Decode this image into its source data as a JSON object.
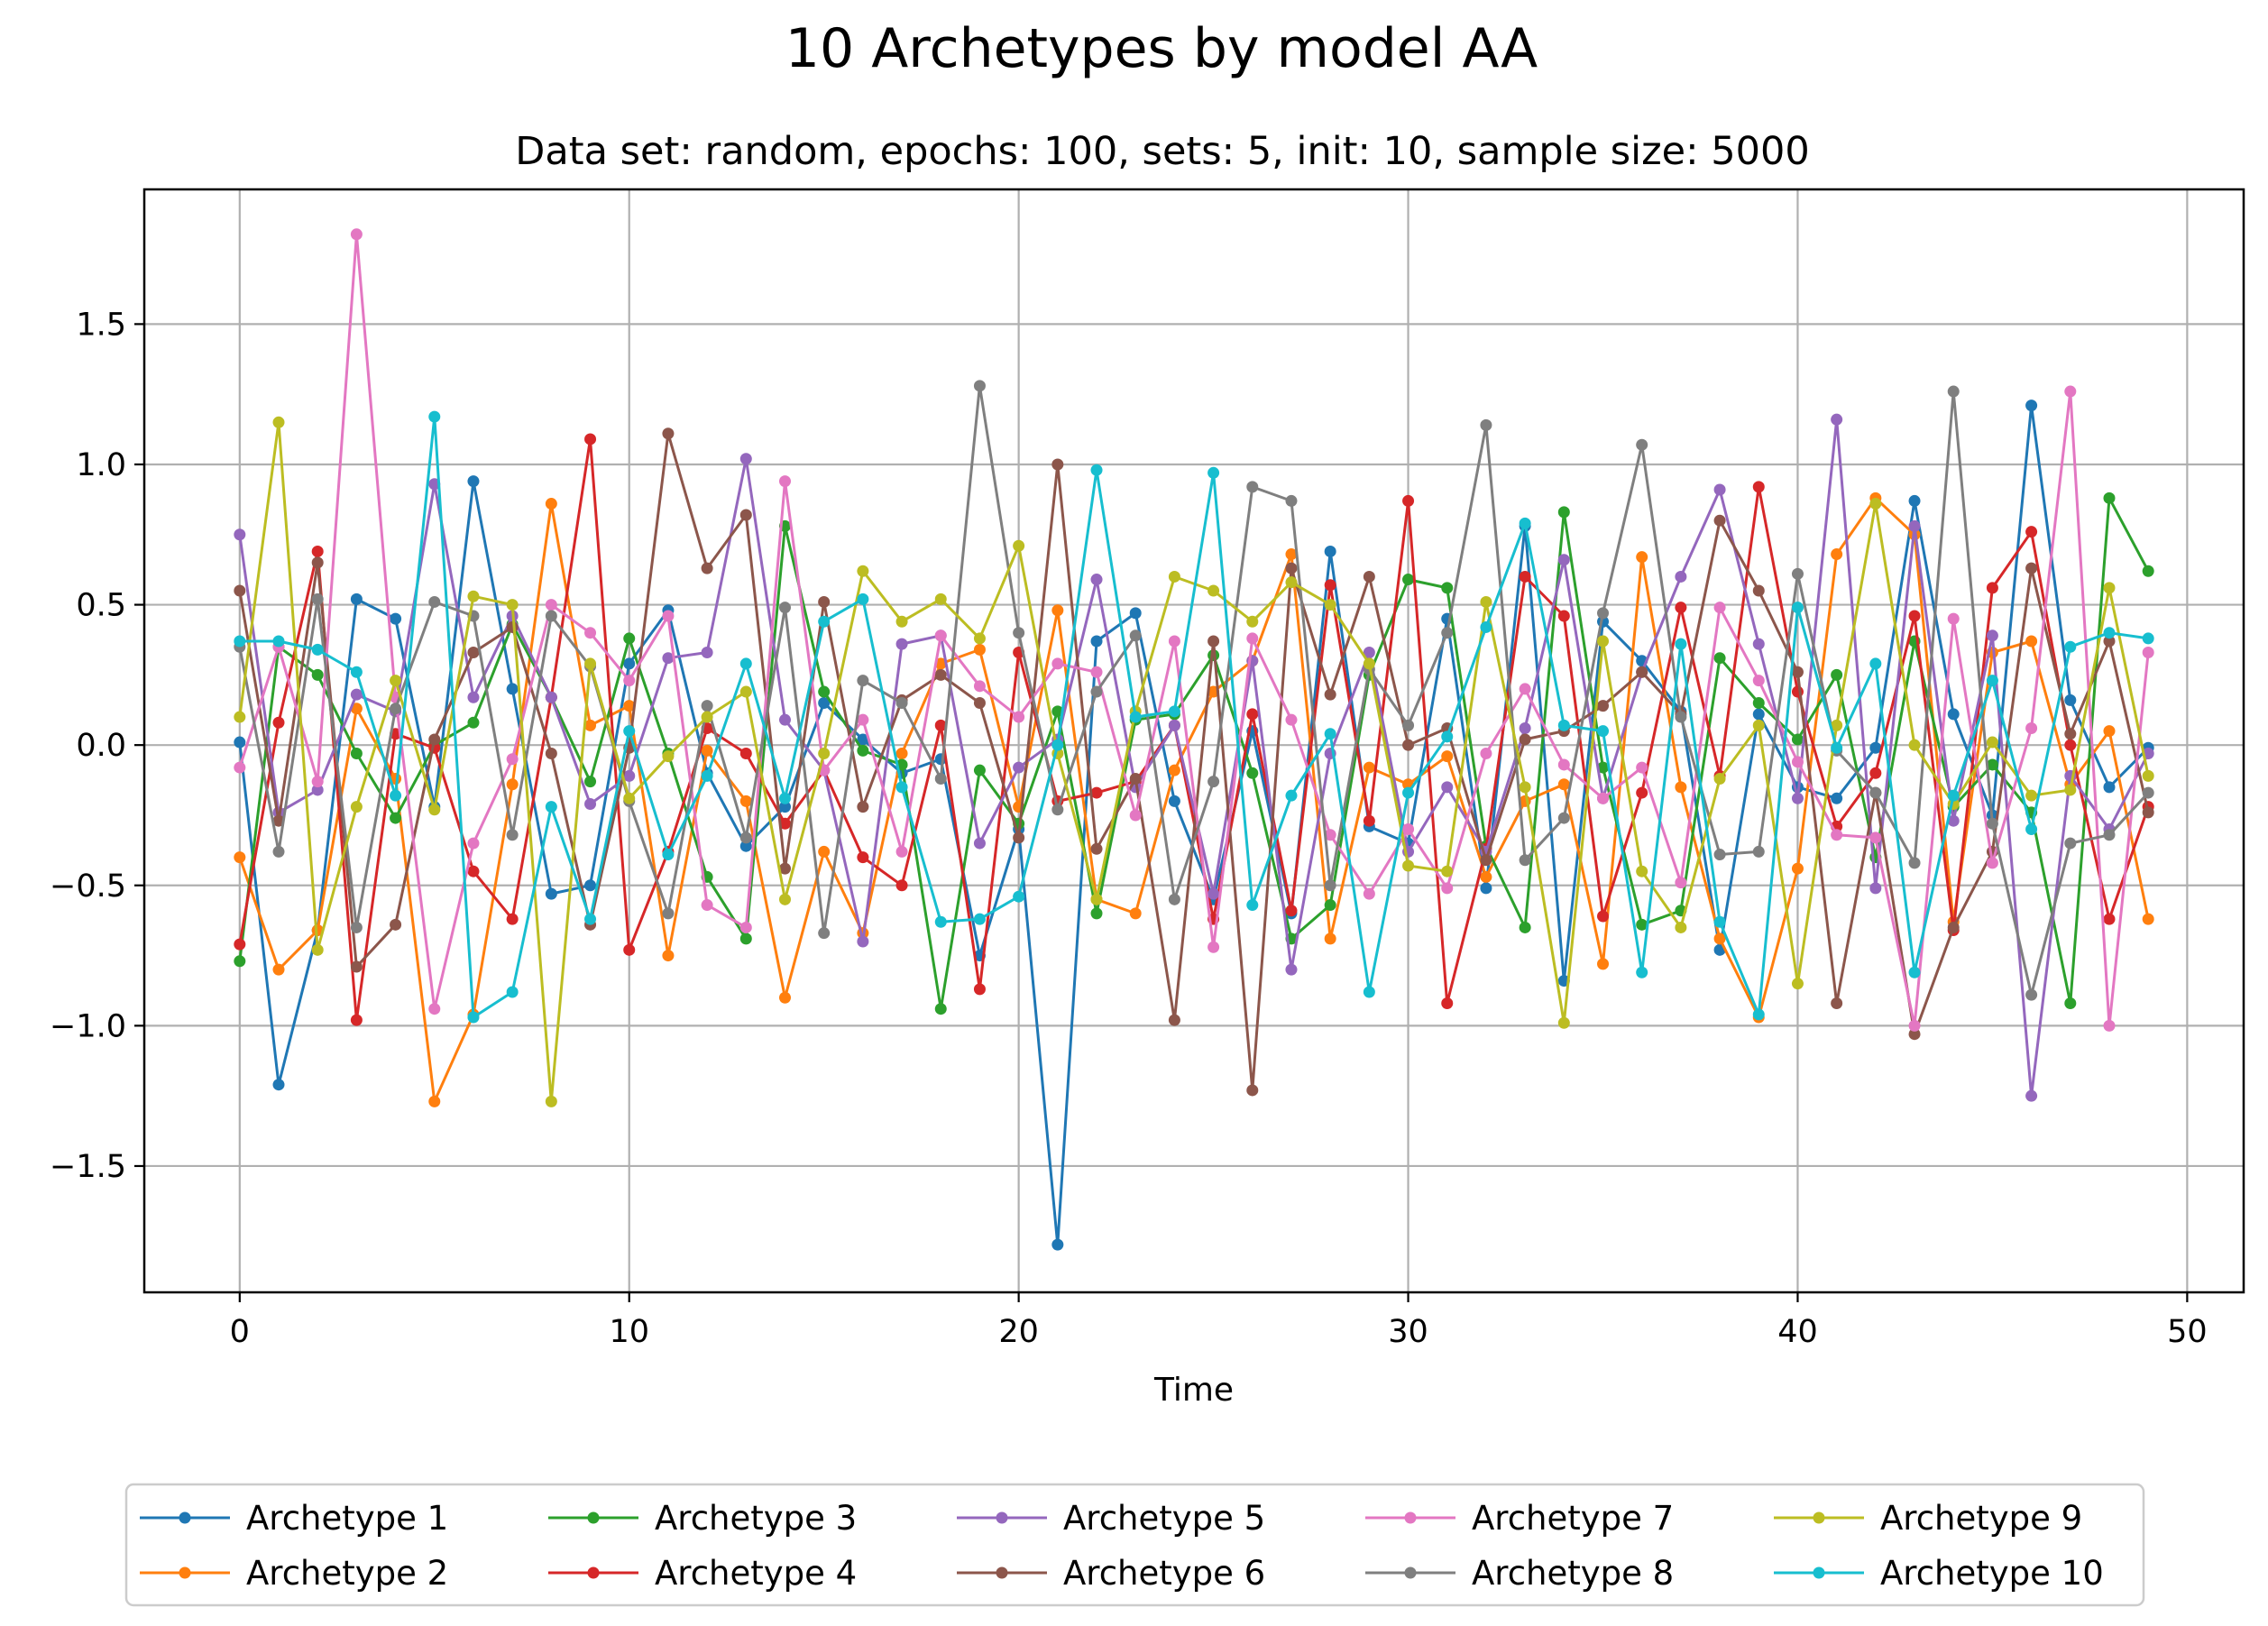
{
  "chart_data": {
    "type": "line",
    "title": "10 Archetypes by model AA",
    "subtitle": "Data set: random, epochs: 100, sets: 5, init: 10, sample size: 5000",
    "xlabel": "Time",
    "ylabel": "",
    "xlim": [
      -2.45,
      51.45
    ],
    "ylim": [
      -1.95,
      1.98
    ],
    "xticks": [
      0,
      10,
      20,
      30,
      40,
      50
    ],
    "xtick_labels": [
      "0",
      "10",
      "20",
      "30",
      "40",
      "50"
    ],
    "yticks": [
      -1.5,
      -1.0,
      -0.5,
      0.0,
      0.5,
      1.0,
      1.5
    ],
    "ytick_labels": [
      "−1.5",
      "−1.0",
      "−0.5",
      "0.0",
      "0.5",
      "1.0",
      "1.5"
    ],
    "grid": true,
    "legend_position": "bottom-center",
    "legend_columns": 5,
    "x": [
      0,
      1,
      2,
      3,
      4,
      5,
      6,
      7,
      8,
      9,
      10,
      11,
      12,
      13,
      14,
      15,
      16,
      17,
      18,
      19,
      20,
      21,
      22,
      23,
      24,
      25,
      26,
      27,
      28,
      29,
      30,
      31,
      32,
      33,
      34,
      35,
      36,
      37,
      38,
      39,
      40,
      41,
      42,
      43,
      44,
      45,
      46,
      47,
      48,
      49
    ],
    "series": [
      {
        "name": "Archetype 1",
        "color": "#1f77b4",
        "values": [
          0.01,
          -1.21,
          -0.66,
          0.52,
          0.45,
          -0.22,
          0.94,
          0.2,
          -0.53,
          -0.5,
          0.29,
          0.48,
          -0.1,
          -0.36,
          -0.22,
          0.15,
          0.02,
          -0.1,
          -0.05,
          -0.75,
          -0.3,
          -1.78,
          0.37,
          0.47,
          -0.2,
          -0.55,
          0.05,
          -0.6,
          0.69,
          -0.29,
          -0.35,
          0.45,
          -0.51,
          0.78,
          -0.84,
          0.44,
          0.3,
          0.12,
          -0.73,
          0.11,
          -0.15,
          -0.19,
          -0.01,
          0.87,
          0.11,
          -0.25,
          1.21,
          0.16,
          -0.15,
          -0.01
        ]
      },
      {
        "name": "Archetype 2",
        "color": "#ff7f0e",
        "values": [
          -0.4,
          -0.8,
          -0.66,
          0.13,
          -0.12,
          -1.27,
          -0.96,
          -0.14,
          0.86,
          0.07,
          0.14,
          -0.75,
          -0.02,
          -0.2,
          -0.9,
          -0.38,
          -0.67,
          -0.03,
          0.29,
          0.34,
          -0.22,
          0.48,
          -0.55,
          -0.6,
          -0.09,
          0.19,
          0.3,
          0.68,
          -0.69,
          -0.08,
          -0.14,
          -0.04,
          -0.47,
          -0.2,
          -0.14,
          -0.78,
          0.67,
          -0.15,
          -0.69,
          -0.97,
          -0.44,
          0.68,
          0.88,
          0.75,
          -0.63,
          0.33,
          0.37,
          -0.14,
          0.05,
          -0.62
        ]
      },
      {
        "name": "Archetype 3",
        "color": "#2ca02c",
        "values": [
          -0.77,
          0.35,
          0.25,
          -0.03,
          -0.26,
          0.0,
          0.08,
          0.43,
          0.17,
          -0.13,
          0.38,
          -0.03,
          -0.47,
          -0.69,
          0.78,
          0.19,
          -0.02,
          -0.07,
          -0.94,
          -0.09,
          -0.28,
          0.12,
          -0.6,
          0.09,
          0.11,
          0.32,
          -0.1,
          -0.69,
          -0.57,
          0.25,
          0.59,
          0.56,
          -0.36,
          -0.65,
          0.83,
          -0.08,
          -0.64,
          -0.59,
          0.31,
          0.15,
          0.02,
          0.25,
          -0.4,
          0.37,
          -0.22,
          -0.07,
          -0.24,
          -0.92,
          0.88,
          0.62
        ]
      },
      {
        "name": "Archetype 4",
        "color": "#d62728",
        "values": [
          -0.71,
          0.08,
          0.69,
          -0.98,
          0.04,
          -0.01,
          -0.45,
          -0.62,
          0.17,
          1.09,
          -0.73,
          -0.38,
          0.06,
          -0.03,
          -0.28,
          -0.09,
          -0.4,
          -0.5,
          0.07,
          -0.87,
          0.33,
          -0.2,
          -0.17,
          -0.13,
          0.07,
          -0.62,
          0.11,
          -0.59,
          0.57,
          -0.27,
          0.87,
          -0.92,
          -0.37,
          0.6,
          0.46,
          -0.61,
          -0.17,
          0.49,
          -0.11,
          0.92,
          0.19,
          -0.29,
          -0.1,
          0.46,
          -0.66,
          0.56,
          0.76,
          0.0,
          -0.62,
          -0.22
        ]
      },
      {
        "name": "Archetype 5",
        "color": "#9467bd",
        "values": [
          0.75,
          -0.24,
          -0.16,
          0.18,
          0.12,
          0.93,
          0.17,
          0.46,
          0.17,
          -0.21,
          -0.11,
          0.31,
          0.33,
          1.02,
          0.09,
          -0.09,
          -0.7,
          0.36,
          0.39,
          -0.35,
          -0.08,
          0.02,
          0.59,
          -0.15,
          0.07,
          -0.53,
          0.3,
          -0.8,
          -0.03,
          0.33,
          -0.38,
          -0.15,
          -0.38,
          0.06,
          0.66,
          -0.19,
          0.26,
          0.6,
          0.91,
          0.36,
          -0.19,
          1.16,
          -0.51,
          0.78,
          -0.27,
          0.39,
          -1.25,
          -0.11,
          -0.3,
          -0.03
        ]
      },
      {
        "name": "Archetype 6",
        "color": "#8c564b",
        "values": [
          0.55,
          -0.27,
          0.65,
          -0.79,
          -0.64,
          0.02,
          0.33,
          0.42,
          -0.03,
          -0.64,
          -0.01,
          1.11,
          0.63,
          0.82,
          -0.44,
          0.51,
          -0.22,
          0.16,
          0.25,
          0.15,
          -0.33,
          1.0,
          -0.37,
          -0.12,
          -0.98,
          0.37,
          -1.23,
          0.63,
          0.18,
          0.6,
          0.0,
          0.06,
          -0.41,
          0.02,
          0.05,
          0.14,
          0.26,
          0.11,
          0.8,
          0.55,
          0.26,
          -0.92,
          -0.17,
          -1.03,
          -0.65,
          -0.38,
          0.63,
          0.04,
          0.37,
          -0.24
        ]
      },
      {
        "name": "Archetype 7",
        "color": "#e377c2",
        "values": [
          -0.08,
          0.35,
          -0.13,
          1.82,
          0.17,
          -0.94,
          -0.35,
          -0.05,
          0.5,
          0.4,
          0.23,
          0.46,
          -0.57,
          -0.65,
          0.94,
          -0.09,
          0.09,
          -0.38,
          0.39,
          0.21,
          0.1,
          0.29,
          0.26,
          -0.25,
          0.37,
          -0.72,
          0.38,
          0.09,
          -0.32,
          -0.53,
          -0.3,
          -0.51,
          -0.03,
          0.2,
          -0.07,
          -0.19,
          -0.08,
          -0.49,
          0.49,
          0.23,
          -0.06,
          -0.32,
          -0.33,
          -1.0,
          0.45,
          -0.42,
          0.06,
          1.26,
          -1.0,
          0.33
        ]
      },
      {
        "name": "Archetype 8",
        "color": "#7f7f7f",
        "values": [
          0.35,
          -0.38,
          0.52,
          -0.65,
          0.13,
          0.51,
          0.46,
          -0.32,
          0.46,
          0.28,
          -0.2,
          -0.6,
          0.14,
          -0.33,
          0.49,
          -0.67,
          0.23,
          0.15,
          -0.12,
          1.28,
          0.4,
          -0.23,
          0.19,
          0.39,
          -0.55,
          -0.13,
          0.92,
          0.87,
          -0.5,
          0.27,
          0.07,
          0.4,
          1.14,
          -0.41,
          -0.26,
          0.47,
          1.07,
          0.1,
          -0.39,
          -0.38,
          0.61,
          -0.02,
          -0.17,
          -0.42,
          1.26,
          -0.28,
          -0.89,
          -0.35,
          -0.32,
          -0.17
        ]
      },
      {
        "name": "Archetype 9",
        "color": "#bcbd22",
        "values": [
          0.1,
          1.15,
          -0.73,
          -0.22,
          0.23,
          -0.23,
          0.53,
          0.5,
          -1.27,
          0.29,
          -0.19,
          -0.04,
          0.1,
          0.19,
          -0.55,
          -0.03,
          0.62,
          0.44,
          0.52,
          0.38,
          0.71,
          -0.03,
          -0.55,
          0.12,
          0.6,
          0.55,
          0.44,
          0.58,
          0.5,
          0.29,
          -0.43,
          -0.45,
          0.51,
          -0.15,
          -0.99,
          0.37,
          -0.45,
          -0.65,
          -0.12,
          0.07,
          -0.85,
          0.07,
          0.86,
          0.0,
          -0.21,
          0.01,
          -0.18,
          -0.16,
          0.56,
          -0.11
        ]
      },
      {
        "name": "Archetype 10",
        "color": "#17becf",
        "values": [
          0.37,
          0.37,
          0.34,
          0.26,
          -0.18,
          1.17,
          -0.97,
          -0.88,
          -0.22,
          -0.62,
          0.05,
          -0.39,
          -0.11,
          0.29,
          -0.19,
          0.44,
          0.52,
          -0.15,
          -0.63,
          -0.62,
          -0.54,
          0.0,
          0.98,
          0.1,
          0.12,
          0.97,
          -0.57,
          -0.18,
          0.04,
          -0.88,
          -0.17,
          0.03,
          0.42,
          0.79,
          0.07,
          0.05,
          -0.81,
          0.36,
          -0.63,
          -0.96,
          0.49,
          -0.01,
          0.29,
          -0.81,
          -0.18,
          0.23,
          -0.3,
          0.35,
          0.4,
          0.38
        ]
      }
    ]
  }
}
